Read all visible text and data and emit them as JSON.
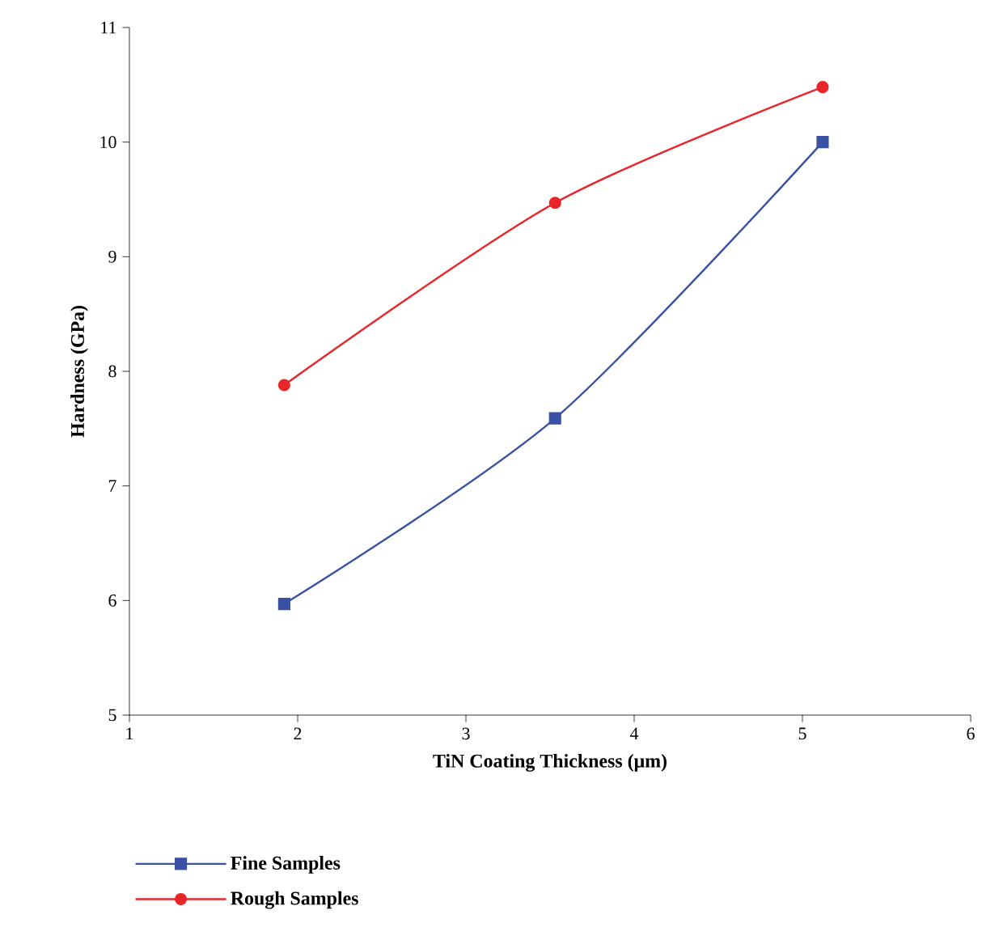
{
  "chart_data": {
    "type": "line",
    "xlabel": "TiN Coating Thickness (μm)",
    "ylabel": "Hardness (GPa)",
    "xlim": [
      1,
      6
    ],
    "xticks": [
      1,
      2,
      3,
      4,
      5,
      6
    ],
    "ylim": [
      5,
      11
    ],
    "yticks": [
      5,
      6,
      7,
      8,
      9,
      10,
      11
    ],
    "grid": false,
    "legend": "bottom",
    "series": [
      {
        "name": "Fine Samples",
        "color": "#3a52a4",
        "marker": "square",
        "x": [
          1.92,
          3.53,
          5.12
        ],
        "values": [
          5.97,
          7.59,
          10.0
        ]
      },
      {
        "name": "Rough Samples",
        "color": "#e8262a",
        "marker": "circle",
        "x": [
          1.92,
          3.53,
          5.12
        ],
        "values": [
          7.88,
          9.47,
          10.48
        ]
      }
    ]
  }
}
